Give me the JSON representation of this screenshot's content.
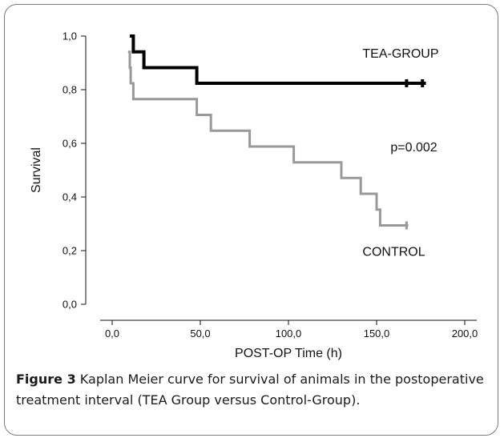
{
  "caption": {
    "label": "Figure 3",
    "text": "Kaplan Meier curve for survival of animals in the postoperative treatment interval (TEA Group versus Control-Group)."
  },
  "chart_data": {
    "type": "line",
    "step": true,
    "xlabel": "POST-OP Time (h)",
    "ylabel": "Survival",
    "xlim": [
      0,
      200
    ],
    "ylim": [
      0,
      1
    ],
    "x_ticks": [
      0,
      50,
      100,
      150,
      200
    ],
    "x_tick_labels": [
      "0,0",
      "50,0",
      "100,0",
      "150,0",
      "200,0"
    ],
    "y_ticks": [
      0,
      0.2,
      0.4,
      0.6,
      0.8,
      1.0
    ],
    "y_tick_labels": [
      "0,0",
      "0,2",
      "0,4",
      "0,6",
      "0,8",
      "1,0"
    ],
    "grid": false,
    "annotations": [
      {
        "text": "p=0.002",
        "x": 142,
        "y": 0.585
      }
    ],
    "series": [
      {
        "name": "TEA-GROUP",
        "color": "#000000",
        "label_at": {
          "x": 142,
          "y": 0.935
        },
        "points": [
          [
            10,
            1.0
          ],
          [
            12,
            1.0
          ],
          [
            12,
            0.941
          ],
          [
            18,
            0.941
          ],
          [
            18,
            0.882
          ],
          [
            48,
            0.882
          ],
          [
            48,
            0.824
          ],
          [
            178,
            0.824
          ]
        ],
        "censored": [
          [
            167,
            0.824
          ],
          [
            176,
            0.824
          ]
        ]
      },
      {
        "name": "CONTROL",
        "color": "#999999",
        "label_at": {
          "x": 142,
          "y": 0.195
        },
        "points": [
          [
            9,
            0.941
          ],
          [
            10,
            0.941
          ],
          [
            10,
            0.882
          ],
          [
            10.5,
            0.882
          ],
          [
            10.5,
            0.824
          ],
          [
            12,
            0.824
          ],
          [
            12,
            0.765
          ],
          [
            48,
            0.765
          ],
          [
            48,
            0.706
          ],
          [
            56,
            0.706
          ],
          [
            56,
            0.647
          ],
          [
            78,
            0.647
          ],
          [
            78,
            0.588
          ],
          [
            103,
            0.588
          ],
          [
            103,
            0.529
          ],
          [
            130,
            0.529
          ],
          [
            130,
            0.471
          ],
          [
            141,
            0.471
          ],
          [
            141,
            0.412
          ],
          [
            150,
            0.412
          ],
          [
            150,
            0.353
          ],
          [
            152,
            0.353
          ],
          [
            152,
            0.294
          ],
          [
            168,
            0.294
          ]
        ],
        "censored": [
          [
            167,
            0.294
          ]
        ]
      }
    ]
  }
}
